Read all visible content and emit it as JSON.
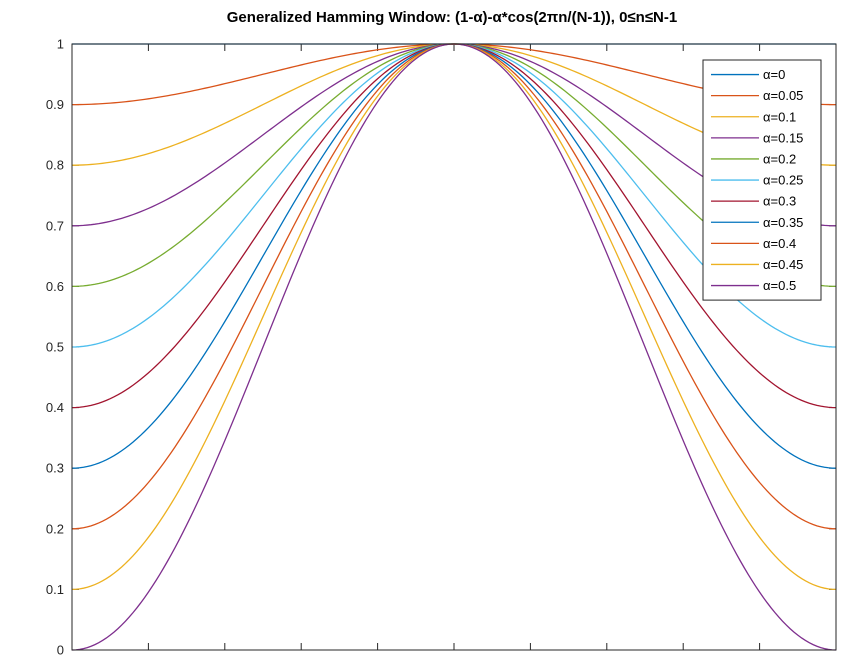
{
  "chart_data": {
    "type": "line",
    "title": "Generalized Hamming Window: (1-α)-α*cos(2πn/(N-1)), 0≤n≤N-1",
    "xlabel": "",
    "ylabel": "",
    "x_range": [
      0,
      1
    ],
    "x_tick_count": 11,
    "x_tick_labels_shown": false,
    "ylim": [
      0,
      1
    ],
    "y_ticks": [
      0,
      0.1,
      0.2,
      0.3,
      0.4,
      0.5,
      0.6,
      0.7,
      0.8,
      0.9,
      1
    ],
    "y_tick_labels": [
      "0",
      "0.1",
      "0.2",
      "0.3",
      "0.4",
      "0.5",
      "0.6",
      "0.7",
      "0.8",
      "0.9",
      "1"
    ],
    "grid": false,
    "legend_position": "top-right",
    "formula": "(1-alpha)-alpha*cos(2*pi*n/(N-1))",
    "series": [
      {
        "name": "α=0",
        "alpha": 0,
        "color": "#0072BD"
      },
      {
        "name": "α=0.05",
        "alpha": 0.05,
        "color": "#D95319"
      },
      {
        "name": "α=0.1",
        "alpha": 0.1,
        "color": "#EDB120"
      },
      {
        "name": "α=0.15",
        "alpha": 0.15,
        "color": "#7E2F8E"
      },
      {
        "name": "α=0.2",
        "alpha": 0.2,
        "color": "#77AC30"
      },
      {
        "name": "α=0.25",
        "alpha": 0.25,
        "color": "#4DBEEE"
      },
      {
        "name": "α=0.3",
        "alpha": 0.3,
        "color": "#A2142F"
      },
      {
        "name": "α=0.35",
        "alpha": 0.35,
        "color": "#0072BD"
      },
      {
        "name": "α=0.4",
        "alpha": 0.4,
        "color": "#D95319"
      },
      {
        "name": "α=0.45",
        "alpha": 0.45,
        "color": "#EDB120"
      },
      {
        "name": "α=0.5",
        "alpha": 0.5,
        "color": "#7E2F8E"
      }
    ]
  }
}
